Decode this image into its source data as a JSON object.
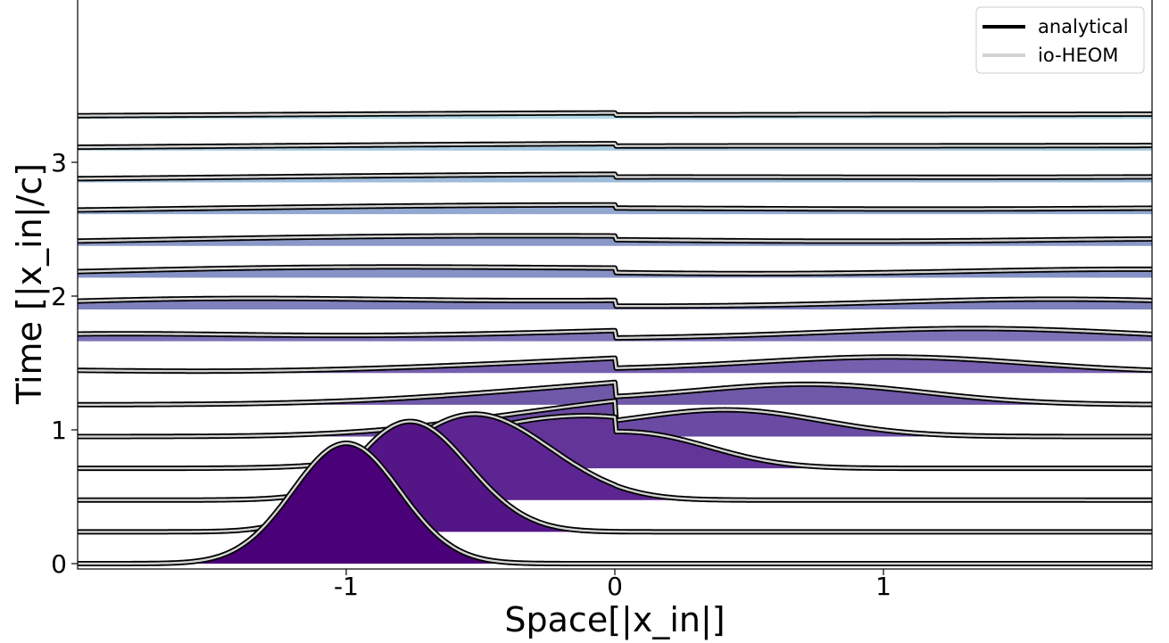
{
  "chart_data": {
    "type": "line",
    "title": "",
    "xlabel": "Space[|x_in|]",
    "ylabel": "Time [|x_in|/c]",
    "xlim": [
      -2,
      2
    ],
    "ylim": [
      0,
      4
    ],
    "x_ticks": [
      {
        "value": -1,
        "label": "-1"
      },
      {
        "value": 0,
        "label": "0"
      },
      {
        "value": 1,
        "label": "1"
      }
    ],
    "y_ticks": [
      {
        "value": 0,
        "label": "0"
      },
      {
        "value": 1,
        "label": "1"
      },
      {
        "value": 2,
        "label": "2"
      },
      {
        "value": 3,
        "label": "3"
      }
    ],
    "layers": {
      "count": 15,
      "time_step": 0.2375,
      "peak_scale": 0.9,
      "fill_colors": [
        "#4a0079",
        "#541587",
        "#5c2591",
        "#633599",
        "#6a4aa2",
        "#7058a8",
        "#765fae",
        "#7b72b6",
        "#7f81bd",
        "#8592c5",
        "#8a98c8",
        "#92a8d0",
        "#9ebbd9",
        "#a7c9df",
        "#b0d8e6"
      ]
    },
    "legend": {
      "position": "top-right",
      "entries": [
        {
          "label": "analytical",
          "color": "#000000"
        },
        {
          "label": "io-HEOM",
          "color": "#d3d3d3"
        }
      ]
    },
    "grid": false
  }
}
